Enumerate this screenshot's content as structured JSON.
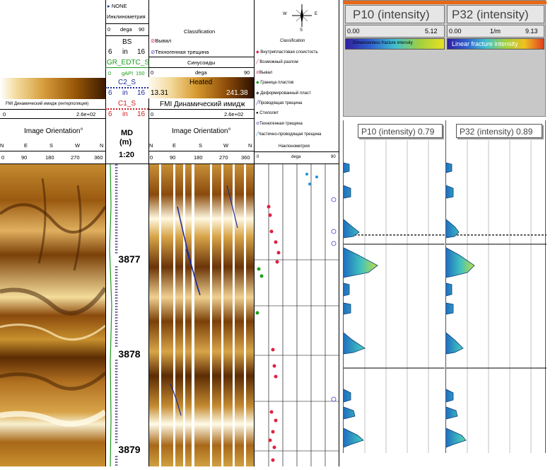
{
  "left_panel": {
    "header": {
      "col1": {
        "legend_label": "FMI Динамический имидж (интерполяция)",
        "scale_min": "0",
        "scale_max": "2.6e+02",
        "orientation_title": "Image Orientation°",
        "dirs": [
          "N",
          "E",
          "S",
          "W",
          "N"
        ],
        "degs": [
          "0",
          "90",
          "180",
          "270",
          "360"
        ]
      },
      "col2": {
        "none_label": "NONE",
        "inclinometry": "Инклинометрия",
        "incl_min": "0",
        "incl_unit": "dega",
        "incl_max": "90",
        "bs_label": "BS",
        "bs_min": "6",
        "bs_unit": "in",
        "bs_max": "16",
        "gr_label": "GR_EDTC_S",
        "gr_min": "0",
        "gr_unit": "gAPI",
        "gr_max": "150",
        "c2_label": "C2_S",
        "c2_min": "6",
        "c2_unit": "in",
        "c2_max": "16",
        "c1_label": "C1_S",
        "c1_min": "6",
        "c1_unit": "in",
        "c1_max": "16",
        "md_label": "MD",
        "md_unit": "(m)",
        "scale": "1:20"
      },
      "col3": {
        "classification": "Classification",
        "leg_vyval": "Вывал",
        "leg_techno": "Техногенная трещина",
        "sinusoids": "Синусоиды",
        "s_min": "0",
        "s_unit": "dega",
        "s_max": "90",
        "heated": "Heated",
        "heated_min": "13.31",
        "heated_max": "241.38",
        "fmi_dyn": "FMI Динамический имидж",
        "scale_min": "0",
        "scale_max": "2.6e+02",
        "orientation_title": "Image Orientation°",
        "dirs": [
          "N",
          "E",
          "S",
          "W",
          "N"
        ],
        "degs": [
          "0",
          "90",
          "180",
          "270",
          "360"
        ]
      },
      "col4": {
        "compass": [
          "W",
          "E",
          "S"
        ],
        "classification": "Classification",
        "legend": [
          "Внутрипластовая слоистость",
          "Возможный разлом",
          "Вывал",
          "Граница пластов",
          "Деформированный пласт",
          "Проводящая трещина",
          "Стилолит",
          "Техногенная трещина",
          "Частично-проводящая трещина"
        ],
        "dip_title": "Наклонометрия",
        "dip_min": "0",
        "dip_unit": "dega",
        "dip_max": "90"
      }
    },
    "depths": [
      "3877",
      "3878",
      "3879"
    ]
  },
  "right_panel": {
    "p10": {
      "title": "P10 (intensity)",
      "min": "0.00",
      "max": "5.12",
      "bar_label": "Dimensionless fracture intensity",
      "chart_title": "P10 (intensity) 0.79"
    },
    "p32": {
      "title": "P32 (intensity)",
      "min": "0.00",
      "unit": "1/m",
      "max": "9.13",
      "bar_label": "Linear fracture intensity",
      "chart_title": "P32 (intensity) 0.89"
    }
  },
  "colors": {
    "fmi_dark": "#5a3000",
    "fmi_light": "#f5d890",
    "gr_green": "#1a9a1a",
    "c2_blue": "#1a2a9a",
    "c1_red": "#d02020",
    "intensity_blue": "#1f6fc0"
  }
}
